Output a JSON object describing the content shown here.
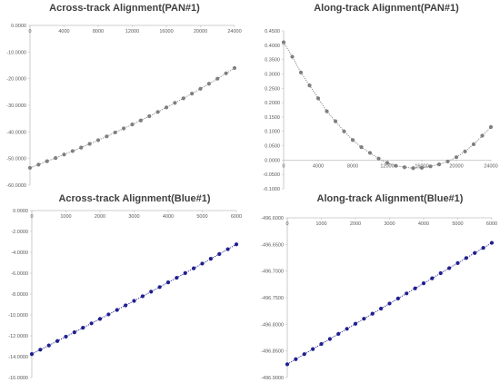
{
  "chart_data": [
    {
      "type": "line",
      "title": "Across-track Alignment(PAN#1)",
      "xlabel": "",
      "ylabel": "",
      "xlim": [
        0,
        24000
      ],
      "ylim": [
        -60,
        0
      ],
      "xticks": [
        "0",
        "4000",
        "8000",
        "12000",
        "16000",
        "20000",
        "24000"
      ],
      "yticks": [
        "0.0000",
        "-10.0000",
        "-20.0000",
        "-30.0000",
        "-40.0000",
        "-50.0000",
        "-60.0000"
      ],
      "x_axis_position": "top",
      "line_style": "dotted",
      "marker": "circle",
      "color": "#7f7f7f",
      "grid": false,
      "series": [
        {
          "x": [
            0,
            1000,
            2000,
            3000,
            4000,
            5000,
            6000,
            7000,
            8000,
            9000,
            10000,
            11000,
            12000,
            13000,
            14000,
            15000,
            16000,
            17000,
            18000,
            19000,
            20000,
            21000,
            22000,
            23000,
            24000
          ],
          "y": [
            -53.5,
            -52.3,
            -51.0,
            -49.8,
            -48.5,
            -47.2,
            -45.9,
            -44.5,
            -43.1,
            -41.7,
            -40.2,
            -38.7,
            -37.2,
            -35.7,
            -34.1,
            -32.5,
            -30.8,
            -29.1,
            -27.4,
            -25.6,
            -23.8,
            -21.9,
            -20.0,
            -18.0,
            -16.0
          ]
        }
      ]
    },
    {
      "type": "line",
      "title": "Along-track Alignment(PAN#1)",
      "xlabel": "",
      "ylabel": "",
      "xlim": [
        0,
        24000
      ],
      "ylim": [
        -0.1,
        0.45
      ],
      "xticks": [
        "0",
        "4000",
        "8000",
        "12000",
        "16000",
        "20000",
        "24000"
      ],
      "yticks": [
        "0.4500",
        "0.4000",
        "0.3500",
        "0.3000",
        "0.2500",
        "0.2000",
        "0.1500",
        "0.1000",
        "0.0500",
        "0.0000",
        "-0.0500",
        "-0.1000"
      ],
      "x_axis_position": "y=0",
      "line_style": "dotted",
      "marker": "circle",
      "color": "#7f7f7f",
      "grid": false,
      "series": [
        {
          "x": [
            0,
            1000,
            2000,
            3000,
            4000,
            5000,
            6000,
            7000,
            8000,
            9000,
            10000,
            11000,
            12000,
            13000,
            14000,
            15000,
            16000,
            17000,
            18000,
            19000,
            20000,
            21000,
            22000,
            23000,
            24000
          ],
          "y": [
            0.41,
            0.36,
            0.305,
            0.26,
            0.215,
            0.17,
            0.135,
            0.1,
            0.07,
            0.045,
            0.025,
            0.005,
            -0.01,
            -0.02,
            -0.025,
            -0.028,
            -0.027,
            -0.022,
            -0.015,
            -0.005,
            0.01,
            0.03,
            0.055,
            0.085,
            0.115
          ]
        }
      ]
    },
    {
      "type": "line",
      "title": "Across-track Alignment(Blue#1)",
      "xlabel": "",
      "ylabel": "",
      "xlim": [
        0,
        6000
      ],
      "ylim": [
        -16,
        0
      ],
      "xticks": [
        "0",
        "1000",
        "2000",
        "3000",
        "4000",
        "5000",
        "6000"
      ],
      "yticks": [
        "0.0000",
        "-2.0000",
        "-4.0000",
        "-6.0000",
        "-8.0000",
        "-10.0000",
        "-12.0000",
        "-14.0000",
        "-16.0000"
      ],
      "x_axis_position": "top",
      "line_style": "dotted",
      "marker": "circle",
      "color": "#1f1f8f",
      "grid": false,
      "series": [
        {
          "x": [
            0,
            250,
            500,
            750,
            1000,
            1250,
            1500,
            1750,
            2000,
            2250,
            2500,
            2750,
            3000,
            3250,
            3500,
            3750,
            4000,
            4250,
            4500,
            4750,
            5000,
            5250,
            5500,
            5750,
            6000
          ],
          "y": [
            -13.75,
            -13.33,
            -12.92,
            -12.5,
            -12.08,
            -11.66,
            -11.23,
            -10.81,
            -10.38,
            -9.95,
            -9.52,
            -9.09,
            -8.65,
            -8.21,
            -7.77,
            -7.33,
            -6.88,
            -6.44,
            -5.99,
            -5.53,
            -5.08,
            -4.62,
            -4.16,
            -3.7,
            -3.24
          ]
        }
      ]
    },
    {
      "type": "line",
      "title": "Along-track Alignment(Blue#1)",
      "xlabel": "",
      "ylabel": "",
      "xlim": [
        0,
        6000
      ],
      "ylim": [
        -496.9,
        -496.6
      ],
      "xticks": [
        "0",
        "1000",
        "2000",
        "3000",
        "4000",
        "5000",
        "6000"
      ],
      "yticks": [
        "-496.6000",
        "-496.6500",
        "-496.7000",
        "-496.7500",
        "-496.8000",
        "-496.8500",
        "-496.9000"
      ],
      "x_axis_position": "top",
      "line_style": "dotted",
      "marker": "circle",
      "color": "#1f1f8f",
      "grid": false,
      "series": [
        {
          "x": [
            0,
            250,
            500,
            750,
            1000,
            1250,
            1500,
            1750,
            2000,
            2250,
            2500,
            2750,
            3000,
            3250,
            3500,
            3750,
            4000,
            4250,
            4500,
            4750,
            5000,
            5250,
            5500,
            5750,
            6000
          ],
          "y": [
            -496.875,
            -496.8655,
            -496.856,
            -496.8465,
            -496.837,
            -496.8275,
            -496.818,
            -496.8085,
            -496.799,
            -496.7895,
            -496.78,
            -496.7705,
            -496.761,
            -496.7515,
            -496.742,
            -496.7325,
            -496.723,
            -496.7135,
            -496.704,
            -496.6945,
            -496.685,
            -496.6755,
            -496.666,
            -496.6565,
            -496.647
          ]
        }
      ]
    }
  ]
}
